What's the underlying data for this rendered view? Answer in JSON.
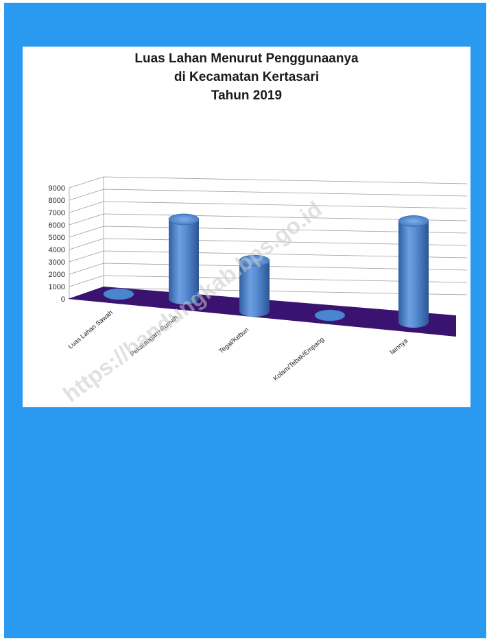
{
  "colors": {
    "background": "#2a9af0",
    "floor": "#3a1370",
    "cylinder": "#4a7fc6"
  },
  "watermark": "https://bandungkab.bps.go.id",
  "chart_data": {
    "type": "bar",
    "style": "3d-cylinder",
    "title": [
      "Luas Lahan Menurut Penggunaanya",
      "di Kecamatan Kertasari",
      "Tahun 2019"
    ],
    "categories": [
      "Luas Lahan Sawah",
      "Pekarangan+Rumah",
      "Tegal/Kebun",
      "Kolam/Tebak/Empang",
      "lainnya"
    ],
    "values": [
      0,
      6450,
      4100,
      0,
      8200
    ],
    "ylim": [
      0,
      9000
    ],
    "yticks": [
      "0",
      "1000",
      "2000",
      "3000",
      "4000",
      "5000",
      "6000",
      "7000",
      "8000",
      "9000"
    ],
    "grid": true,
    "legend": "none"
  }
}
